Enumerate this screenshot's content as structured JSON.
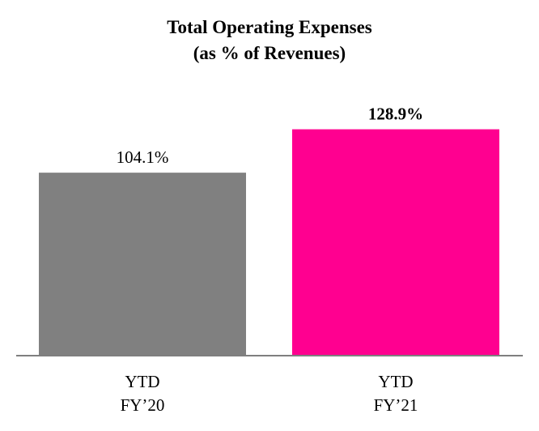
{
  "chart_data": {
    "type": "bar",
    "title": "Total Operating Expenses",
    "subtitle": "(as % of Revenues)",
    "categories": [
      [
        "YTD",
        "FY’20"
      ],
      [
        "YTD",
        "FY’21"
      ]
    ],
    "values": [
      104.1,
      128.9
    ],
    "value_labels": [
      "104.1%",
      "128.9%"
    ],
    "label_bold": [
      false,
      true
    ],
    "colors": [
      "#808080",
      "#ff0090"
    ],
    "axis_color": "#7f7f7f",
    "ylim": [
      0,
      130
    ],
    "grid": false,
    "legend": "none"
  }
}
